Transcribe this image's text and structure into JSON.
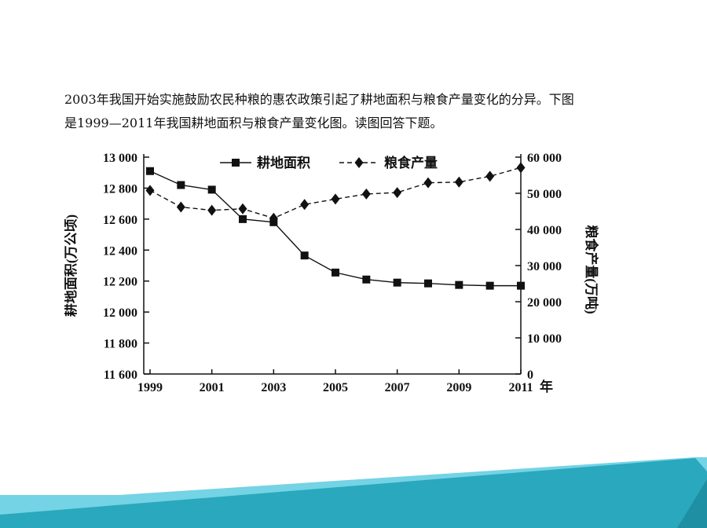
{
  "question": {
    "line1": "2003年我国开始实施鼓励农民种粮的惠农政策引起了耕地面积与粮食产量变化的分异。下图",
    "line2": "是1999—2011年我国耕地面积与粮食产量变化图。读图回答下题。"
  },
  "colors": {
    "background": "#74d3e4",
    "accent_dark": "#2aa8bd",
    "line": "#111111"
  },
  "chart_data": {
    "type": "line",
    "x": [
      1999,
      2000,
      2001,
      2002,
      2003,
      2004,
      2005,
      2006,
      2007,
      2008,
      2009,
      2010,
      2011
    ],
    "x_tick_labels": [
      "1999",
      "2001",
      "2003",
      "2005",
      "2007",
      "2009",
      "2011"
    ],
    "x_tick_values": [
      1999,
      2001,
      2003,
      2005,
      2007,
      2009,
      2011
    ],
    "xlabel": "年",
    "xlim": [
      1999,
      2011
    ],
    "left_axis": {
      "label": "耕地面积(万公顷)",
      "ylim": [
        11600,
        13000
      ],
      "tick_values": [
        11600,
        11800,
        12000,
        12200,
        12400,
        12600,
        12800,
        13000
      ],
      "tick_labels": [
        "11 600",
        "11 800",
        "12 000",
        "12 200",
        "12 400",
        "12 600",
        "12 800",
        "13 000"
      ]
    },
    "right_axis": {
      "label": "粮食产量(万吨)",
      "ylim": [
        0,
        60000
      ],
      "tick_values": [
        0,
        10000,
        20000,
        30000,
        40000,
        50000,
        60000
      ],
      "tick_labels": [
        "0",
        "10 000",
        "20 000",
        "30 000",
        "40 000",
        "50 000",
        "60 000"
      ]
    },
    "series": [
      {
        "name": "耕地面积",
        "axis": "left",
        "marker": "square",
        "style": "solid",
        "values": [
          12910,
          12820,
          12790,
          12600,
          12580,
          12365,
          12255,
          12210,
          12190,
          12185,
          12175,
          12170,
          12170
        ]
      },
      {
        "name": "粮食产量",
        "axis": "right",
        "marker": "diamond",
        "style": "dashed",
        "values": [
          50800,
          46200,
          45300,
          45700,
          43100,
          46900,
          48400,
          49800,
          50200,
          52900,
          53100,
          54700,
          57100
        ]
      }
    ],
    "legend_position": "top",
    "grid": false
  }
}
